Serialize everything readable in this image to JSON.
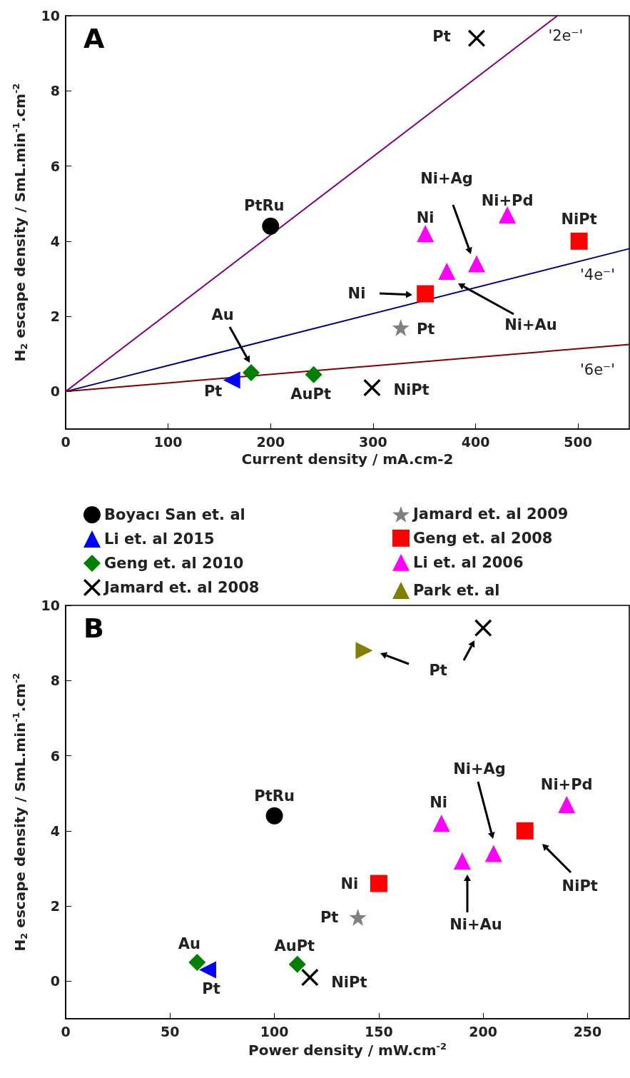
{
  "chart_data": [
    {
      "type": "scatter",
      "title": "A",
      "xlabel": "Current density / mA.cm-2",
      "ylabel": "H$_{2}$ escape density / SmL.min$^{-1}$.cm$^{-2}$",
      "xlim": [
        0,
        550
      ],
      "xticks": [
        0,
        100,
        200,
        300,
        400,
        500
      ],
      "ylim": [
        -1,
        10
      ],
      "yticks": [
        0,
        2,
        4,
        6,
        8,
        10
      ],
      "legend": "bottom",
      "series": [
        {
          "name": "Boyacı San et. al",
          "color": "#000000",
          "marker": "circle",
          "x": [
            200
          ],
          "values": [
            4.4
          ],
          "value_labels": [
            "PtRu"
          ]
        },
        {
          "name": "Li et. al 2015",
          "color": "#0000ff",
          "marker": "triangle-left",
          "x": [
            162
          ],
          "values": [
            0.3
          ],
          "value_labels": [
            "Pt"
          ]
        },
        {
          "name": "Geng et. al 2010",
          "color": "#008000",
          "marker": "diamond",
          "x": [
            181,
            242
          ],
          "values": [
            0.5,
            0.45
          ],
          "value_labels": [
            "Au",
            "AuPt"
          ]
        },
        {
          "name": "Jamard et. al 2008",
          "color": "#000000",
          "marker": "cross",
          "x": [
            401,
            299
          ],
          "values": [
            9.4,
            0.1
          ],
          "value_labels": [
            "Pt",
            "NiPt"
          ]
        },
        {
          "name": "Jamard et. al 2009",
          "color": "#808080",
          "marker": "star",
          "x": [
            327
          ],
          "values": [
            1.7
          ],
          "value_labels": [
            "Pt"
          ]
        },
        {
          "name": "Geng et. al 2008",
          "color": "#ff0000",
          "marker": "square",
          "x": [
            351,
            501
          ],
          "values": [
            2.6,
            4.0
          ],
          "value_labels": [
            null,
            "NiPt"
          ]
        },
        {
          "name": "Li et. al 2006",
          "color": "#ff00ff",
          "marker": "triangle",
          "x": [
            351,
            372,
            401,
            431
          ],
          "values": [
            4.2,
            3.2,
            3.4,
            4.7
          ],
          "value_labels": [
            "Ni",
            null,
            null,
            "Ni+Pd"
          ]
        },
        {
          "type": "line",
          "name": "'2e⁻'",
          "color": "#800080",
          "marker": "none",
          "x": [
            0,
            480
          ],
          "values": [
            0,
            10
          ]
        },
        {
          "type": "line",
          "name": "'4e⁻'",
          "color": "#000080",
          "marker": "none",
          "x": [
            0,
            550
          ],
          "values": [
            0,
            3.8
          ]
        },
        {
          "type": "line",
          "name": "'6e⁻'",
          "color": "#800000",
          "marker": "none",
          "x": [
            0,
            550
          ],
          "values": [
            0,
            1.25
          ]
        }
      ],
      "annotations": [
        "Ni",
        "Ni+Ag",
        "Ni+Au"
      ]
    },
    {
      "type": "scatter",
      "title": "B",
      "xlabel": "Power density / mW.cm$^{-2}$",
      "ylabel": "H$_{2}$ escape density / SmL.min$^{-1}$.cm$^{-2}$",
      "xlim": [
        0,
        270
      ],
      "xticks": [
        0,
        50,
        100,
        150,
        200,
        250
      ],
      "ylim": [
        -1,
        10
      ],
      "yticks": [
        0,
        2,
        4,
        6,
        8,
        10
      ],
      "legend": "top",
      "series": [
        {
          "name": "Boyacı San et. al",
          "color": "#000000",
          "marker": "circle",
          "x": [
            100
          ],
          "values": [
            4.4
          ],
          "value_labels": [
            "PtRu"
          ]
        },
        {
          "name": "Li et. al 2015",
          "color": "#0000ff",
          "marker": "triangle-left",
          "x": [
            68
          ],
          "values": [
            0.3
          ],
          "value_labels": [
            "Pt"
          ]
        },
        {
          "name": "Geng et. al 2010",
          "color": "#008000",
          "marker": "diamond",
          "x": [
            63,
            111
          ],
          "values": [
            0.5,
            0.45
          ],
          "value_labels": [
            "Au",
            "AuPt"
          ]
        },
        {
          "name": "Jamard et. al 2008",
          "color": "#000000",
          "marker": "cross",
          "x": [
            200,
            117
          ],
          "values": [
            9.4,
            0.1
          ],
          "value_labels": [
            "Pt",
            "NiPt"
          ]
        },
        {
          "name": "Jamard et. al 2009",
          "color": "#808080",
          "marker": "star",
          "x": [
            140
          ],
          "values": [
            1.7
          ],
          "value_labels": [
            "Pt"
          ]
        },
        {
          "name": "Geng et. al 2008",
          "color": "#ff0000",
          "marker": "square",
          "x": [
            150,
            220
          ],
          "values": [
            2.6,
            4.0
          ],
          "value_labels": [
            "Ni",
            "NiPt"
          ]
        },
        {
          "name": "Li et. al 2006",
          "color": "#ff00ff",
          "marker": "triangle",
          "x": [
            180,
            190,
            205,
            240
          ],
          "values": [
            4.2,
            3.2,
            3.4,
            4.7
          ],
          "value_labels": [
            "Ni",
            "Ni+Au",
            null,
            "Ni+Pd"
          ]
        },
        {
          "name": "Park et. al",
          "color": "#808000",
          "marker": "triangle-right",
          "x": [
            143
          ],
          "values": [
            8.8
          ]
        }
      ],
      "annotations": [
        "Ni+Ag"
      ]
    }
  ]
}
